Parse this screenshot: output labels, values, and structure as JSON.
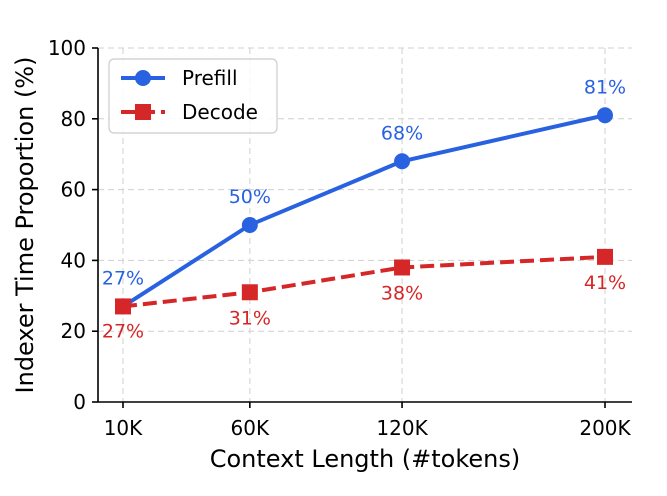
{
  "chart_data": {
    "type": "line",
    "categories": [
      "10K",
      "60K",
      "120K",
      "200K"
    ],
    "x": [
      10,
      60,
      120,
      200
    ],
    "xlabel": "Context Length (#tokens)",
    "ylabel": "Indexer Time Proportion (%)",
    "ylim": [
      0,
      100
    ],
    "yticks": [
      0,
      20,
      40,
      60,
      80,
      100
    ],
    "grid": true,
    "legend_position": "top-left",
    "series": [
      {
        "name": "Prefill",
        "values": [
          27,
          50,
          68,
          81
        ],
        "labels": [
          "27%",
          "50%",
          "68%",
          "81%"
        ],
        "color": "#2962e0",
        "marker": "circle",
        "line_style": "solid"
      },
      {
        "name": "Decode",
        "values": [
          27,
          31,
          38,
          41
        ],
        "labels": [
          "27%",
          "31%",
          "38%",
          "41%"
        ],
        "color": "#d62728",
        "marker": "square",
        "line_style": "dashed"
      }
    ]
  }
}
